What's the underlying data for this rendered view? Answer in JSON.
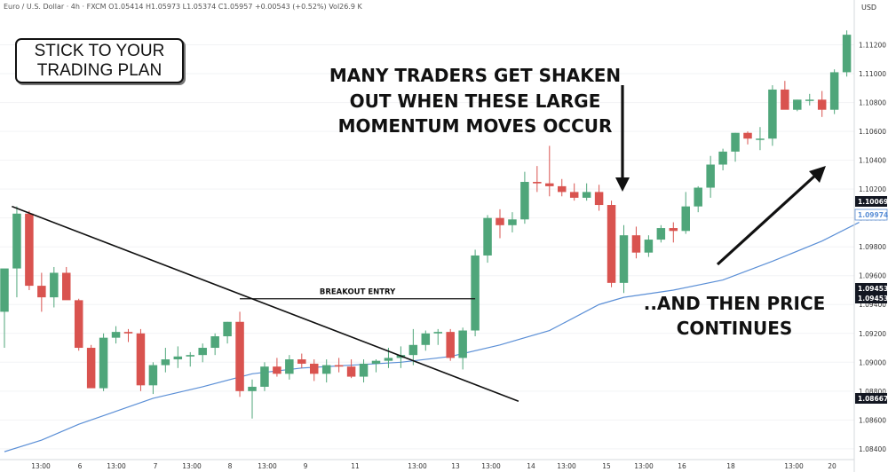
{
  "header": {
    "symbol_line": "Euro / U.S. Dollar · 4h · FXCM O1.05414 H1.05973 L1.05374 C1.05957 +0.00543 (+0.52%) Vol26.9 K",
    "currency": "USD"
  },
  "annotations": {
    "plan_box": "STICK TO YOUR\nTRADING PLAN",
    "shakeout": "MANY TRADERS GET SHAKEN\nOUT WHEN THESE LARGE\nMOMENTUM MOVES OCCUR",
    "continues": "..AND THEN PRICE\nCONTINUES",
    "breakout_entry": "BREAKOUT ENTRY"
  },
  "colors": {
    "up": "#4fa67a",
    "down": "#d9534f",
    "moving_average": "#5b8fd6",
    "trendline": "#111111",
    "grid": "#f2f3f5",
    "price_tag": "#131722"
  },
  "chart_data": {
    "type": "candlestick",
    "title": "Euro / U.S. Dollar · 4h · FXCM",
    "ylim": [
      1.0835,
      1.114
    ],
    "y_ticks": [
      1.084,
      1.086,
      1.088,
      1.09,
      1.092,
      1.094,
      1.096,
      1.098,
      1.1,
      1.102,
      1.104,
      1.106,
      1.108,
      1.11,
      1.112
    ],
    "x_ticks": [
      "13:00",
      "6",
      "13:00",
      "7",
      "13:00",
      "8",
      "13:00",
      "9",
      "11",
      "13:00",
      "13",
      "13:00",
      "14",
      "13:00",
      "15",
      "13:00",
      "16",
      "18",
      "13:00",
      "20"
    ],
    "price_labels": [
      "1.10069",
      "1.09974",
      "1.09453",
      "1.09453",
      "1.08667"
    ],
    "candles": [
      {
        "o": 1.0935,
        "h": 1.0962,
        "l": 1.091,
        "c": 1.0965
      },
      {
        "o": 1.0965,
        "h": 1.1008,
        "l": 1.0945,
        "c": 1.1003
      },
      {
        "o": 1.1003,
        "h": 1.1005,
        "l": 1.095,
        "c": 1.0953
      },
      {
        "o": 1.0953,
        "h": 1.0962,
        "l": 1.0935,
        "c": 1.0945
      },
      {
        "o": 1.0945,
        "h": 1.0966,
        "l": 1.0938,
        "c": 1.0962
      },
      {
        "o": 1.0962,
        "h": 1.0966,
        "l": 1.0944,
        "c": 1.0943
      },
      {
        "o": 1.0943,
        "h": 1.0944,
        "l": 1.0908,
        "c": 1.091
      },
      {
        "o": 1.091,
        "h": 1.0912,
        "l": 1.0883,
        "c": 1.0882
      },
      {
        "o": 1.0882,
        "h": 1.092,
        "l": 1.088,
        "c": 1.0917
      },
      {
        "o": 1.0917,
        "h": 1.0925,
        "l": 1.0913,
        "c": 1.0921
      },
      {
        "o": 1.0921,
        "h": 1.0923,
        "l": 1.0914,
        "c": 1.092
      },
      {
        "o": 1.092,
        "h": 1.0923,
        "l": 1.088,
        "c": 1.0884
      },
      {
        "o": 1.0884,
        "h": 1.09,
        "l": 1.0878,
        "c": 1.0898
      },
      {
        "o": 1.0898,
        "h": 1.091,
        "l": 1.0893,
        "c": 1.0902
      },
      {
        "o": 1.0902,
        "h": 1.0911,
        "l": 1.0896,
        "c": 1.0904
      },
      {
        "o": 1.0904,
        "h": 1.0907,
        "l": 1.0897,
        "c": 1.0905
      },
      {
        "o": 1.0905,
        "h": 1.0913,
        "l": 1.09,
        "c": 1.091
      },
      {
        "o": 1.091,
        "h": 1.092,
        "l": 1.0905,
        "c": 1.0918
      },
      {
        "o": 1.0918,
        "h": 1.0928,
        "l": 1.0913,
        "c": 1.0928
      },
      {
        "o": 1.0928,
        "h": 1.0935,
        "l": 1.0876,
        "c": 1.088
      },
      {
        "o": 1.088,
        "h": 1.0888,
        "l": 1.0861,
        "c": 1.0883
      },
      {
        "o": 1.0883,
        "h": 1.09,
        "l": 1.088,
        "c": 1.0897
      },
      {
        "o": 1.0897,
        "h": 1.0903,
        "l": 1.089,
        "c": 1.0892
      },
      {
        "o": 1.0892,
        "h": 1.0905,
        "l": 1.0888,
        "c": 1.0902
      },
      {
        "o": 1.0902,
        "h": 1.0906,
        "l": 1.0896,
        "c": 1.0899
      },
      {
        "o": 1.0899,
        "h": 1.0902,
        "l": 1.0887,
        "c": 1.0892
      },
      {
        "o": 1.0892,
        "h": 1.0902,
        "l": 1.0886,
        "c": 1.0898
      },
      {
        "o": 1.0898,
        "h": 1.0903,
        "l": 1.0893,
        "c": 1.0897
      },
      {
        "o": 1.0897,
        "h": 1.0902,
        "l": 1.0889,
        "c": 1.089
      },
      {
        "o": 1.089,
        "h": 1.0902,
        "l": 1.0886,
        "c": 1.0899
      },
      {
        "o": 1.0899,
        "h": 1.0902,
        "l": 1.0893,
        "c": 1.0901
      },
      {
        "o": 1.0901,
        "h": 1.091,
        "l": 1.0896,
        "c": 1.0903
      },
      {
        "o": 1.0903,
        "h": 1.0911,
        "l": 1.0896,
        "c": 1.0905
      },
      {
        "o": 1.0905,
        "h": 1.0923,
        "l": 1.0898,
        "c": 1.0912
      },
      {
        "o": 1.0912,
        "h": 1.0922,
        "l": 1.0908,
        "c": 1.092
      },
      {
        "o": 1.092,
        "h": 1.0923,
        "l": 1.0912,
        "c": 1.0921
      },
      {
        "o": 1.0921,
        "h": 1.0923,
        "l": 1.0901,
        "c": 1.0903
      },
      {
        "o": 1.0903,
        "h": 1.0924,
        "l": 1.0895,
        "c": 1.0922
      },
      {
        "o": 1.0922,
        "h": 1.0978,
        "l": 1.0918,
        "c": 1.0974
      },
      {
        "o": 1.0974,
        "h": 1.1002,
        "l": 1.0969,
        "c": 1.1
      },
      {
        "o": 1.1,
        "h": 1.1006,
        "l": 1.0986,
        "c": 1.0995
      },
      {
        "o": 1.0995,
        "h": 1.1004,
        "l": 1.099,
        "c": 1.0999
      },
      {
        "o": 1.0999,
        "h": 1.1032,
        "l": 1.0996,
        "c": 1.1025
      },
      {
        "o": 1.1025,
        "h": 1.1036,
        "l": 1.1018,
        "c": 1.1024
      },
      {
        "o": 1.1024,
        "h": 1.105,
        "l": 1.1015,
        "c": 1.1022
      },
      {
        "o": 1.1022,
        "h": 1.1027,
        "l": 1.1015,
        "c": 1.1018
      },
      {
        "o": 1.1018,
        "h": 1.1024,
        "l": 1.1012,
        "c": 1.1014
      },
      {
        "o": 1.1014,
        "h": 1.1024,
        "l": 1.1012,
        "c": 1.1018
      },
      {
        "o": 1.1018,
        "h": 1.1023,
        "l": 1.1005,
        "c": 1.1009
      },
      {
        "o": 1.1009,
        "h": 1.1012,
        "l": 1.0952,
        "c": 1.0955
      },
      {
        "o": 1.0955,
        "h": 1.0995,
        "l": 1.0948,
        "c": 1.0988
      },
      {
        "o": 1.0988,
        "h": 1.0994,
        "l": 1.0972,
        "c": 1.0976
      },
      {
        "o": 1.0976,
        "h": 1.0988,
        "l": 1.0973,
        "c": 1.0985
      },
      {
        "o": 1.0985,
        "h": 1.0995,
        "l": 1.0983,
        "c": 1.0993
      },
      {
        "o": 1.0993,
        "h": 1.0997,
        "l": 1.0983,
        "c": 1.0991
      },
      {
        "o": 1.0991,
        "h": 1.1018,
        "l": 1.0989,
        "c": 1.1008
      },
      {
        "o": 1.1008,
        "h": 1.1022,
        "l": 1.1004,
        "c": 1.1021
      },
      {
        "o": 1.1021,
        "h": 1.1043,
        "l": 1.1014,
        "c": 1.1037
      },
      {
        "o": 1.1037,
        "h": 1.1048,
        "l": 1.1033,
        "c": 1.1046
      },
      {
        "o": 1.1046,
        "h": 1.1059,
        "l": 1.1039,
        "c": 1.1059
      },
      {
        "o": 1.1059,
        "h": 1.106,
        "l": 1.1051,
        "c": 1.1055
      },
      {
        "o": 1.1055,
        "h": 1.1063,
        "l": 1.1047,
        "c": 1.1055
      },
      {
        "o": 1.1055,
        "h": 1.1092,
        "l": 1.105,
        "c": 1.1089
      },
      {
        "o": 1.1089,
        "h": 1.1095,
        "l": 1.1078,
        "c": 1.1075
      },
      {
        "o": 1.1075,
        "h": 1.1082,
        "l": 1.1074,
        "c": 1.1082
      },
      {
        "o": 1.1082,
        "h": 1.1086,
        "l": 1.1078,
        "c": 1.1082
      },
      {
        "o": 1.1082,
        "h": 1.1088,
        "l": 1.107,
        "c": 1.1075
      },
      {
        "o": 1.1075,
        "h": 1.1103,
        "l": 1.1072,
        "c": 1.1101
      },
      {
        "o": 1.1101,
        "h": 1.113,
        "l": 1.1098,
        "c": 1.1127
      }
    ],
    "moving_average": [
      {
        "i": 0,
        "v": 1.0838
      },
      {
        "i": 3,
        "v": 1.0846
      },
      {
        "i": 6,
        "v": 1.0857
      },
      {
        "i": 9,
        "v": 1.0866
      },
      {
        "i": 12,
        "v": 1.0875
      },
      {
        "i": 16,
        "v": 1.0883
      },
      {
        "i": 20,
        "v": 1.0892
      },
      {
        "i": 24,
        "v": 1.0896
      },
      {
        "i": 28,
        "v": 1.0898
      },
      {
        "i": 32,
        "v": 1.09
      },
      {
        "i": 36,
        "v": 1.0904
      },
      {
        "i": 40,
        "v": 1.0912
      },
      {
        "i": 44,
        "v": 1.0922
      },
      {
        "i": 48,
        "v": 1.094
      },
      {
        "i": 50,
        "v": 1.0945
      },
      {
        "i": 54,
        "v": 1.095
      },
      {
        "i": 58,
        "v": 1.0957
      },
      {
        "i": 62,
        "v": 1.097
      },
      {
        "i": 66,
        "v": 1.0984
      },
      {
        "i": 69,
        "v": 1.0997
      }
    ],
    "trendline": [
      {
        "i": 0.6,
        "v": 1.1008
      },
      {
        "i": 41.5,
        "v": 1.0873
      }
    ],
    "breakout_line": {
      "i_start": 19,
      "i_end": 38,
      "v": 1.0944
    }
  }
}
